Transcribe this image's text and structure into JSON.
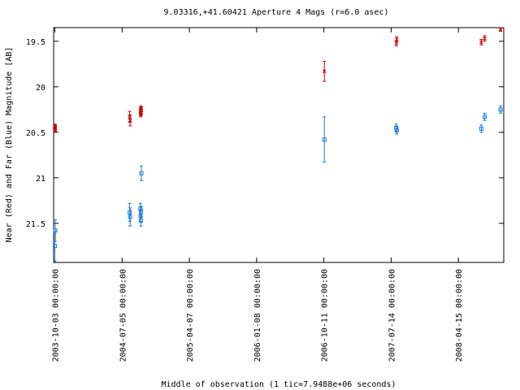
{
  "chart_data": {
    "type": "scatter",
    "title": "9.03316,+41.60421   Aperture 4 Mags (r=6.0 asec)",
    "xlabel": "Middle of observation (1 tic=7.9488e+06 seconds)",
    "ylabel": "Near (Red) and Far (Blue) Magnitude [AB]",
    "x_ticks": [
      {
        "label": "2003-10-03 00:00:00",
        "date": "2003-10-03"
      },
      {
        "label": "2004-07-05 00:00:00",
        "date": "2004-07-05"
      },
      {
        "label": "2005-04-07 00:00:00",
        "date": "2005-04-07"
      },
      {
        "label": "2006-01-08 00:00:00",
        "date": "2006-01-08"
      },
      {
        "label": "2006-10-11 00:00:00",
        "date": "2006-10-11"
      },
      {
        "label": "2007-07-14 00:00:00",
        "date": "2007-07-14"
      },
      {
        "label": "2008-04-15 00:00:00",
        "date": "2008-04-15"
      }
    ],
    "xlim": [
      "2003-09-28",
      "2008-10-18"
    ],
    "y_ticks": [
      19.5,
      20,
      20.5,
      21,
      21.5
    ],
    "y_tick_labels": [
      "19.5",
      "20",
      "20.5",
      "21",
      "21.5"
    ],
    "ylim": [
      19.35,
      21.93
    ],
    "y_inverted": true,
    "grid": false,
    "series": [
      {
        "color": "#cc0000",
        "marker": "x",
        "points": [
          {
            "x": "2003-10-03",
            "y": 20.44,
            "err": 0.03
          },
          {
            "x": "2003-10-04",
            "y": 20.46,
            "err": 0.03
          },
          {
            "x": "2003-10-05",
            "y": 20.45,
            "err": 0.03
          },
          {
            "x": "2004-08-05",
            "y": 20.33,
            "err": 0.06
          },
          {
            "x": "2004-08-07",
            "y": 20.37,
            "err": 0.06
          },
          {
            "x": "2004-09-18",
            "y": 20.27,
            "err": 0.04
          },
          {
            "x": "2004-09-19",
            "y": 20.29,
            "err": 0.04
          },
          {
            "x": "2004-09-20",
            "y": 20.25,
            "err": 0.04
          },
          {
            "x": "2004-09-21",
            "y": 20.28,
            "err": 0.04
          },
          {
            "x": "2004-09-22",
            "y": 20.26,
            "err": 0.04
          },
          {
            "x": "2006-10-13",
            "y": 19.83,
            "err": 0.11
          },
          {
            "x": "2007-08-04",
            "y": 19.52,
            "err": 0.03
          },
          {
            "x": "2007-08-06",
            "y": 19.48,
            "err": 0.03
          },
          {
            "x": "2008-07-18",
            "y": 19.51,
            "err": 0.03
          },
          {
            "x": "2008-08-01",
            "y": 19.47,
            "err": 0.03
          },
          {
            "x": "2008-10-05",
            "y": 19.37,
            "err": 0.02
          }
        ]
      },
      {
        "color": "#1a7ae0",
        "marker": "square",
        "points": [
          {
            "x": "2003-10-03",
            "y": 21.75,
            "err": 0.16
          },
          {
            "x": "2003-10-05",
            "y": 21.58,
            "err": 0.12
          },
          {
            "x": "2004-08-05",
            "y": 21.38,
            "err": 0.1
          },
          {
            "x": "2004-08-07",
            "y": 21.43,
            "err": 0.1
          },
          {
            "x": "2004-09-18",
            "y": 21.34,
            "err": 0.06
          },
          {
            "x": "2004-09-19",
            "y": 21.42,
            "err": 0.06
          },
          {
            "x": "2004-09-20",
            "y": 21.47,
            "err": 0.06
          },
          {
            "x": "2004-09-21",
            "y": 21.37,
            "err": 0.06
          },
          {
            "x": "2004-09-22",
            "y": 20.95,
            "err": 0.08
          },
          {
            "x": "2006-10-13",
            "y": 20.58,
            "err": 0.25
          },
          {
            "x": "2007-08-04",
            "y": 20.45,
            "err": 0.04
          },
          {
            "x": "2007-08-06",
            "y": 20.48,
            "err": 0.04
          },
          {
            "x": "2008-07-18",
            "y": 20.46,
            "err": 0.04
          },
          {
            "x": "2008-08-01",
            "y": 20.33,
            "err": 0.04
          },
          {
            "x": "2008-10-05",
            "y": 20.25,
            "err": 0.04
          }
        ]
      }
    ]
  }
}
